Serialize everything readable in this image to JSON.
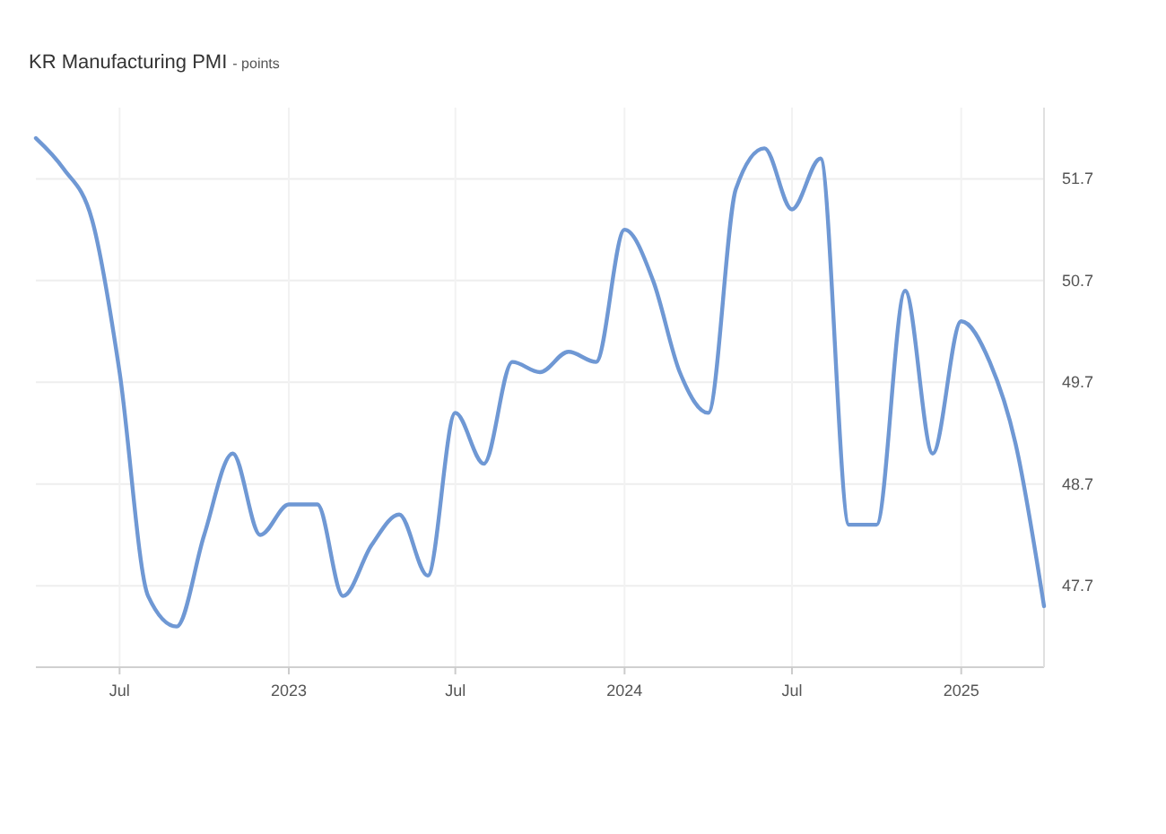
{
  "chart_data": {
    "type": "line",
    "title": "KR Manufacturing PMI",
    "subtitle": "- points",
    "x": [
      "2022-04",
      "2022-05",
      "2022-06",
      "2022-07",
      "2022-08",
      "2022-09",
      "2022-10",
      "2022-11",
      "2022-12",
      "2023-01",
      "2023-02",
      "2023-03",
      "2023-04",
      "2023-05",
      "2023-06",
      "2023-07",
      "2023-08",
      "2023-09",
      "2023-10",
      "2023-11",
      "2023-12",
      "2024-01",
      "2024-02",
      "2024-03",
      "2024-04",
      "2024-05",
      "2024-06",
      "2024-07",
      "2024-08",
      "2024-09",
      "2024-10",
      "2024-11",
      "2024-12",
      "2025-01",
      "2025-02",
      "2025-03",
      "2025-04"
    ],
    "series": [
      {
        "color": "#6f98d4",
        "values": [
          52.1,
          51.8,
          51.3,
          49.8,
          47.6,
          47.3,
          48.2,
          49.0,
          48.2,
          48.5,
          48.5,
          47.6,
          48.1,
          48.4,
          47.8,
          49.4,
          48.9,
          49.9,
          49.8,
          50.0,
          49.9,
          51.2,
          50.7,
          49.8,
          49.4,
          51.6,
          52.0,
          51.4,
          51.9,
          48.3,
          48.3,
          50.6,
          49.0,
          50.3,
          49.9,
          49.1,
          47.5
        ]
      }
    ],
    "xlim": [
      "2022-04",
      "2025-04"
    ],
    "xticks": [
      {
        "value": "2022-07",
        "label": "Jul"
      },
      {
        "value": "2023-01",
        "label": "2023"
      },
      {
        "value": "2023-07",
        "label": "Jul"
      },
      {
        "value": "2024-01",
        "label": "2024"
      },
      {
        "value": "2024-07",
        "label": "Jul"
      },
      {
        "value": "2025-01",
        "label": "2025"
      }
    ],
    "ylim": [
      46.9,
      52.4
    ],
    "yticks": [
      47.7,
      48.7,
      49.7,
      50.7,
      51.7
    ],
    "grid": true,
    "marker": "none",
    "line_style": "solid"
  }
}
